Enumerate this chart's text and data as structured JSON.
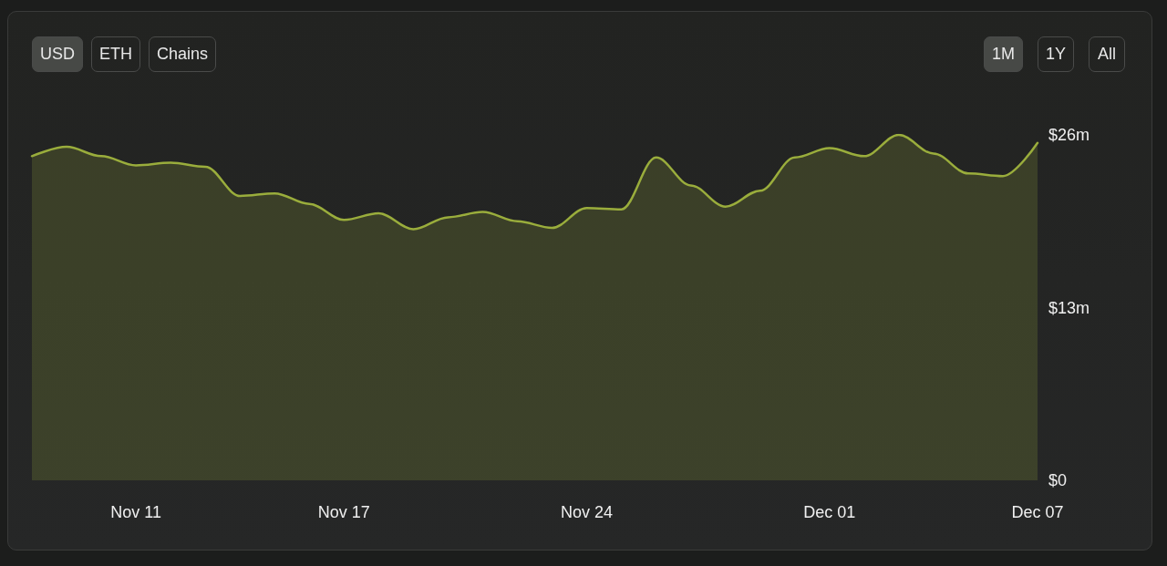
{
  "chart_data": {
    "type": "area",
    "x": [
      "--11-08",
      "--11-09",
      "--11-10",
      "--11-11",
      "--11-12",
      "--11-13",
      "--11-14",
      "--11-15",
      "--11-16",
      "--11-17",
      "--11-18",
      "--11-19",
      "--11-20",
      "--11-21",
      "--11-22",
      "--11-23",
      "--11-24",
      "--11-25",
      "--11-26",
      "--11-27",
      "--11-28",
      "--11-29",
      "--11-30",
      "--12-01",
      "--12-02",
      "--12-03",
      "--12-04",
      "--12-05",
      "--12-06",
      "--12-07"
    ],
    "series": [
      {
        "color": "#9aad3c",
        "values": [
          24.4,
          25.1,
          24.4,
          23.7,
          23.9,
          23.6,
          21.4,
          21.6,
          20.8,
          19.6,
          20.1,
          18.9,
          19.8,
          20.2,
          19.5,
          19.0,
          20.5,
          20.4,
          24.3,
          22.2,
          20.6,
          21.8,
          24.3,
          25.0,
          24.4,
          26.0,
          24.6,
          23.1,
          22.9,
          25.4
        ]
      }
    ],
    "xlim": [
      "--11-08",
      "--12-07"
    ],
    "xticks": [
      {
        "value": "--11-11",
        "label": "Nov 11"
      },
      {
        "value": "--11-17",
        "label": "Nov 17"
      },
      {
        "value": "--11-24",
        "label": "Nov 24"
      },
      {
        "value": "--12-01",
        "label": "Dec 01"
      },
      {
        "value": "--12-07",
        "label": "Dec 07"
      }
    ],
    "ylim": [
      0,
      26
    ],
    "yticks": [
      {
        "value": 0,
        "label": "$0"
      },
      {
        "value": 13,
        "label": "$13m"
      },
      {
        "value": 26,
        "label": "$26m"
      }
    ],
    "annotations": [
      "USD",
      "ETH",
      "Chains",
      "1M",
      "1Y",
      "All"
    ],
    "grid": false,
    "marker": "none",
    "line_style": "solid"
  }
}
